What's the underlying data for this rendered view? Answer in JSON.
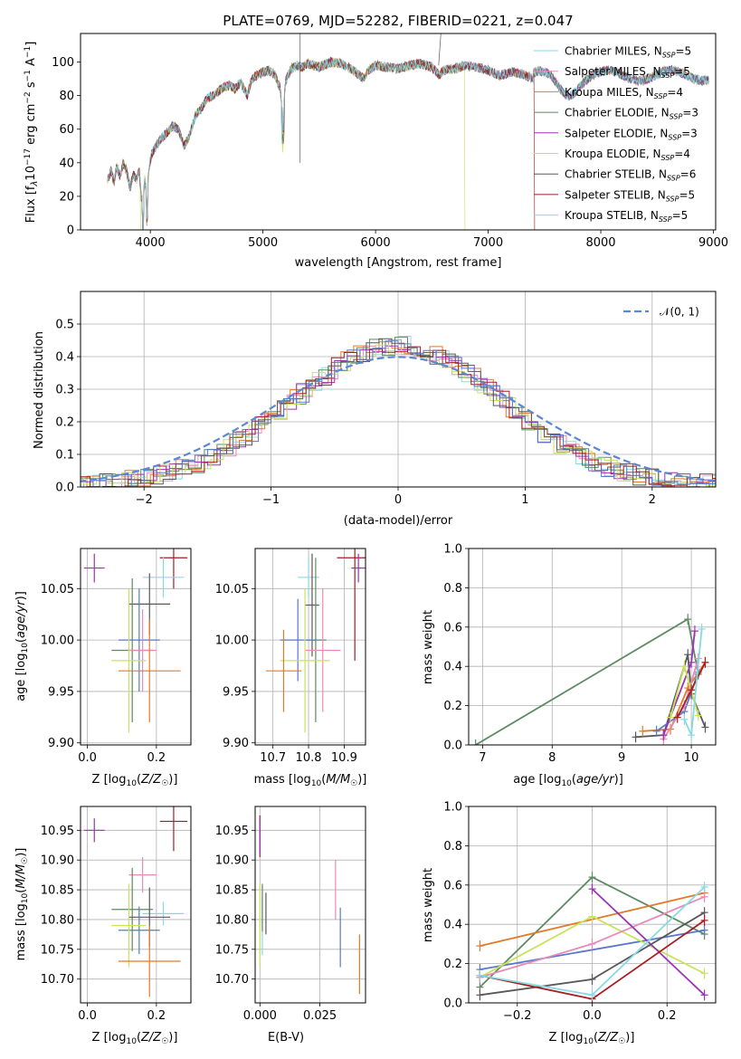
{
  "colors": {
    "C1": "#5779c9",
    "C2": "#e07b2a",
    "C3": "#5d8a62",
    "C4": "#e88ab9",
    "C5": "#9a33b4",
    "C6": "#c8e35a",
    "C7": "#58585a",
    "C8": "#a81c22",
    "C9": "#86dbe3",
    "dashed": "#5b86d6"
  },
  "chart_data": [
    {
      "type": "line",
      "title": "PLATE=0769, MJD=52282, FIBERID=0221, z=0.047",
      "xlabel": "wavelength [Angstrom, rest frame]",
      "ylabel": "Flux [f_λ10⁻¹⁷ erg cm⁻² s⁻¹ A⁻¹]",
      "xlim": [
        3380,
        9020
      ],
      "ylim": [
        0,
        117
      ],
      "xticks": [
        "4000",
        "5000",
        "6000",
        "7000",
        "8000",
        "9000"
      ],
      "yticks": [
        "0",
        "20",
        "40",
        "60",
        "80",
        "100"
      ],
      "legend_position": "top-right",
      "series": [
        {
          "name": "Chabrier MILES, N_SSP=5",
          "color": "C9"
        },
        {
          "name": "Salpeter MILES, N_SSP=5",
          "color": "C4"
        },
        {
          "name": "Kroupa MILES, N_SSP=4",
          "color": "C2"
        },
        {
          "name": "Chabrier ELODIE, N_SSP=3",
          "color": "C3"
        },
        {
          "name": "Salpeter ELODIE, N_SSP=3",
          "color": "C5"
        },
        {
          "name": "Kroupa ELODIE, N_SSP=4",
          "color": "C6"
        },
        {
          "name": "Chabrier STELIB, N_SSP=6",
          "color": "C7"
        },
        {
          "name": "Salpeter STELIB, N_SSP=5",
          "color": "C8"
        },
        {
          "name": "Kroupa STELIB, N_SSP=5",
          "color": "C9"
        }
      ],
      "spectrum": {
        "wavelength": [
          3620,
          3650,
          3680,
          3700,
          3730,
          3760,
          3790,
          3820,
          3850,
          3880,
          3900,
          3920,
          3935,
          3950,
          3970,
          3990,
          4010,
          4050,
          4100,
          4150,
          4200,
          4250,
          4300,
          4340,
          4400,
          4450,
          4500,
          4550,
          4600,
          4650,
          4700,
          4750,
          4800,
          4861,
          4900,
          4950,
          5000,
          5050,
          5100,
          5150,
          5175,
          5200,
          5250,
          5300,
          5350,
          5400,
          5450,
          5500,
          5600,
          5700,
          5800,
          5893,
          5950,
          6000,
          6100,
          6200,
          6300,
          6400,
          6500,
          6563,
          6600,
          6700,
          6800,
          6900,
          7000,
          7100,
          7200,
          7300,
          7400
        ],
        "flux": [
          30,
          35,
          28,
          38,
          32,
          40,
          35,
          25,
          33,
          30,
          36,
          20,
          15,
          30,
          22,
          38,
          45,
          50,
          55,
          58,
          62,
          60,
          50,
          55,
          68,
          72,
          78,
          80,
          82,
          85,
          86,
          84,
          88,
          80,
          90,
          92,
          94,
          95,
          93,
          85,
          70,
          88,
          96,
          98,
          97,
          99,
          98,
          97,
          100,
          99,
          95,
          90,
          96,
          98,
          97,
          96,
          98,
          99,
          97,
          92,
          95,
          96,
          98,
          97,
          95,
          92,
          94,
          93,
          90
        ]
      }
    },
    {
      "type": "bar",
      "xlabel": "(data-model)/error",
      "ylabel": "Normed distribution",
      "xlim": [
        -2.5,
        2.5
      ],
      "ylim": [
        0,
        0.6
      ],
      "xticks": [
        "−2",
        "−1",
        "0",
        "1",
        "2"
      ],
      "yticks": [
        "0.0",
        "0.1",
        "0.2",
        "0.3",
        "0.4",
        "0.5"
      ],
      "legend": "𝒩(0, 1)",
      "legend_position": "top-right"
    },
    {
      "type": "scatter",
      "xlabel": "Z [log₁₀(Z/Z☉)]",
      "ylabel": "age  [log₁₀(age/yr)]",
      "xlim": [
        -0.02,
        0.3
      ],
      "ylim": [
        9.898,
        10.089
      ],
      "xticks": [
        "0.0",
        "0.2"
      ],
      "yticks": [
        "9.90",
        "9.95",
        "10.00",
        "10.05"
      ],
      "points": [
        {
          "color": "C5",
          "x": 0.02,
          "xe": 0.03,
          "y": 10.07,
          "ye": 0.014
        },
        {
          "color": "C8",
          "x": 0.25,
          "xe": 0.04,
          "y": 10.08,
          "ye": 0.03
        },
        {
          "color": "C9",
          "x": 0.22,
          "xe": 0.06,
          "y": 10.061,
          "ye": 0.02
        },
        {
          "color": "C7",
          "x": 0.18,
          "xe": 0.06,
          "y": 10.035,
          "ye": 0.03
        },
        {
          "color": "C3",
          "x": 0.13,
          "xe": 0.06,
          "y": 9.99,
          "ye": 0.07
        },
        {
          "color": "C1",
          "x": 0.15,
          "xe": 0.06,
          "y": 10.0,
          "ye": 0.05
        },
        {
          "color": "C4",
          "x": 0.16,
          "xe": 0.04,
          "y": 9.99,
          "ye": 0.04
        },
        {
          "color": "C6",
          "x": 0.12,
          "xe": 0.05,
          "y": 9.98,
          "ye": 0.07
        },
        {
          "color": "C2",
          "x": 0.18,
          "xe": 0.09,
          "y": 9.97,
          "ye": 0.05
        }
      ]
    },
    {
      "type": "scatter",
      "xlabel": "mass [log₁₀(M/M☉)]",
      "ylabel": "",
      "xlim": [
        10.65,
        10.96
      ],
      "ylim": [
        9.898,
        10.089
      ],
      "xticks": [
        "10.7",
        "10.8",
        "10.9"
      ],
      "yticks": [
        "9.90",
        "9.95",
        "10.00",
        "10.05"
      ],
      "points": [
        {
          "color": "C8",
          "x": 10.93,
          "xe": 0.05,
          "y": 10.08,
          "ye": 0.1
        },
        {
          "color": "C5",
          "x": 10.94,
          "xe": 0.02,
          "y": 10.07,
          "ye": 0.014
        },
        {
          "color": "C9",
          "x": 10.8,
          "xe": 0.03,
          "y": 10.061,
          "ye": 0.02
        },
        {
          "color": "C7",
          "x": 10.81,
          "xe": 0.02,
          "y": 10.034,
          "ye": 0.05
        },
        {
          "color": "C3",
          "x": 10.82,
          "xe": 0.03,
          "y": 10.0,
          "ye": 0.08
        },
        {
          "color": "C1",
          "x": 10.77,
          "xe": 0.05,
          "y": 10.0,
          "ye": 0.04
        },
        {
          "color": "C4",
          "x": 10.84,
          "xe": 0.05,
          "y": 9.99,
          "ye": 0.06
        },
        {
          "color": "C6",
          "x": 10.79,
          "xe": 0.07,
          "y": 9.98,
          "ye": 0.07
        },
        {
          "color": "C2",
          "x": 10.73,
          "xe": 0.05,
          "y": 9.97,
          "ye": 0.04
        }
      ]
    },
    {
      "type": "line",
      "xlabel": "age  [log₁₀(age/yr)]",
      "ylabel": "mass weight",
      "xlim": [
        6.8,
        10.35
      ],
      "ylim": [
        0,
        1
      ],
      "xticks": [
        "7",
        "8",
        "9",
        "10"
      ],
      "yticks": [
        "0.0",
        "0.2",
        "0.4",
        "0.6",
        "0.8",
        "1.0"
      ]
    },
    {
      "type": "scatter",
      "xlabel": "Z [log₁₀(Z/Z☉)]",
      "ylabel": "mass [log₁₀(M/M☉)]",
      "xlim": [
        -0.02,
        0.3
      ],
      "ylim": [
        10.66,
        10.99
      ],
      "xticks": [
        "0.0",
        "0.2"
      ],
      "yticks": [
        "10.70",
        "10.75",
        "10.80",
        "10.85",
        "10.90",
        "10.95"
      ],
      "points": [
        {
          "color": "C5",
          "x": 0.02,
          "xe": 0.03,
          "y": 10.95,
          "ye": 0.02
        },
        {
          "color": "C8",
          "x": 0.25,
          "xe": 0.04,
          "y": 10.965,
          "ye": 0.05
        },
        {
          "color": "C4",
          "x": 0.16,
          "xe": 0.04,
          "y": 10.875,
          "ye": 0.03
        },
        {
          "color": "C3",
          "x": 0.13,
          "xe": 0.06,
          "y": 10.817,
          "ye": 0.07
        },
        {
          "color": "C9",
          "x": 0.22,
          "xe": 0.06,
          "y": 10.81,
          "ye": 0.02
        },
        {
          "color": "C7",
          "x": 0.18,
          "xe": 0.06,
          "y": 10.804,
          "ye": 0.05
        },
        {
          "color": "C1",
          "x": 0.15,
          "xe": 0.06,
          "y": 10.782,
          "ye": 0.04
        },
        {
          "color": "C6",
          "x": 0.12,
          "xe": 0.05,
          "y": 10.79,
          "ye": 0.07
        },
        {
          "color": "C2",
          "x": 0.18,
          "xe": 0.09,
          "y": 10.73,
          "ye": 0.06
        }
      ]
    },
    {
      "type": "scatter",
      "xlabel": "E(B-V)",
      "ylabel": "",
      "xlim": [
        -0.002,
        0.044
      ],
      "ylim": [
        10.66,
        10.99
      ],
      "xticks": [
        "0.000",
        "0.025"
      ],
      "yticks": [
        "10.70",
        "10.75",
        "10.80",
        "10.85",
        "10.90",
        "10.95"
      ],
      "points": [
        {
          "color": "C8",
          "x": 0.0,
          "y": 10.94,
          "ye": 0.035
        },
        {
          "color": "C5",
          "x": 0.0,
          "y": 10.94,
          "ye": 0.03
        },
        {
          "color": "C6",
          "x": 0.0,
          "y": 10.79,
          "ye": 0.07
        },
        {
          "color": "C9",
          "x": 0.001,
          "y": 10.79,
          "ye": 0.05
        },
        {
          "color": "C3",
          "x": 0.001,
          "y": 10.82,
          "ye": 0.04
        },
        {
          "color": "C7",
          "x": 0.0025,
          "y": 10.81,
          "ye": 0.035
        },
        {
          "color": "C4",
          "x": 0.0315,
          "y": 10.85,
          "ye": 0.05
        },
        {
          "color": "C1",
          "x": 0.0335,
          "y": 10.77,
          "ye": 0.05
        },
        {
          "color": "C2",
          "x": 0.0415,
          "y": 10.725,
          "ye": 0.05
        }
      ]
    },
    {
      "type": "line",
      "xlabel": "Z [log₁₀(Z/Z☉)]",
      "ylabel": "mass weight",
      "xlim": [
        -0.33,
        0.33
      ],
      "ylim": [
        0,
        1
      ],
      "xticks": [
        "−0.2",
        "0.0",
        "0.2"
      ],
      "yticks": [
        "0.0",
        "0.2",
        "0.4",
        "0.6",
        "0.8",
        "1.0"
      ]
    }
  ]
}
